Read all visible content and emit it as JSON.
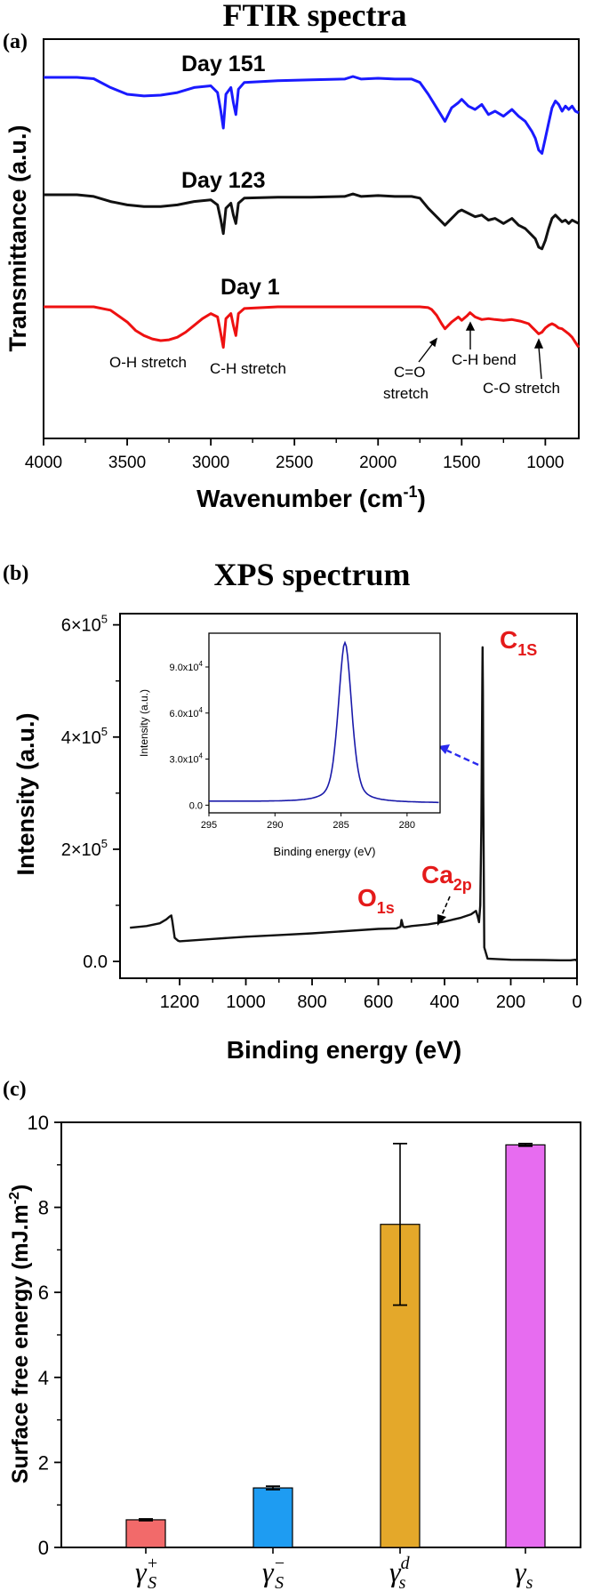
{
  "chart_data": [
    {
      "panel": "(a)",
      "type": "line",
      "title": "FTIR spectra",
      "xlabel": "Wavenumber (cm",
      "xlabel_sup": "-1",
      "xlabel_end": ")",
      "ylabel": "Transmittance (a.u.)",
      "xlim": [
        4000,
        800
      ],
      "xticks": [
        4000,
        3500,
        3000,
        2500,
        2000,
        1500,
        1000
      ],
      "yticks_shown": false,
      "series": [
        {
          "name": "Day 151",
          "color": "#1a1aff",
          "x": [
            4000,
            3900,
            3800,
            3700,
            3600,
            3500,
            3400,
            3300,
            3200,
            3100,
            3000,
            2960,
            2940,
            2925,
            2910,
            2880,
            2865,
            2850,
            2835,
            2800,
            2600,
            2400,
            2200,
            2150,
            2100,
            2000,
            1900,
            1800,
            1750,
            1700,
            1650,
            1600,
            1560,
            1520,
            1500,
            1460,
            1420,
            1380,
            1340,
            1300,
            1250,
            1200,
            1160,
            1120,
            1080,
            1060,
            1040,
            1020,
            1000,
            980,
            960,
            940,
            920,
            900,
            880,
            860,
            840,
            820,
            800
          ],
          "y": [
            0.0,
            0.0,
            0.0,
            -0.08,
            -0.6,
            -1.0,
            -1.1,
            -1.05,
            -0.9,
            -0.6,
            -0.5,
            -0.9,
            -2.0,
            -3.0,
            -1.0,
            -0.6,
            -1.5,
            -2.2,
            -0.7,
            -0.3,
            -0.2,
            -0.15,
            -0.1,
            0.05,
            -0.1,
            -0.05,
            -0.1,
            -0.1,
            -0.3,
            -1.0,
            -1.8,
            -2.6,
            -1.8,
            -1.5,
            -1.3,
            -1.7,
            -1.9,
            -1.6,
            -2.2,
            -2.0,
            -2.3,
            -1.9,
            -2.3,
            -2.6,
            -3.2,
            -3.6,
            -4.3,
            -4.5,
            -3.6,
            -2.7,
            -1.8,
            -1.4,
            -1.6,
            -2.0,
            -1.7,
            -1.9,
            -1.7,
            -2.0,
            -2.1
          ]
        },
        {
          "name": "Day 123",
          "color": "#111111",
          "x": [
            4000,
            3900,
            3800,
            3700,
            3600,
            3500,
            3400,
            3300,
            3200,
            3100,
            3000,
            2960,
            2940,
            2925,
            2910,
            2880,
            2865,
            2850,
            2835,
            2800,
            2600,
            2400,
            2200,
            2150,
            2100,
            2000,
            1900,
            1800,
            1750,
            1700,
            1650,
            1600,
            1560,
            1520,
            1500,
            1460,
            1420,
            1380,
            1340,
            1300,
            1250,
            1200,
            1160,
            1120,
            1080,
            1060,
            1040,
            1020,
            1000,
            980,
            960,
            940,
            920,
            900,
            880,
            860,
            840,
            820,
            800
          ],
          "y": [
            0.0,
            0.0,
            0.0,
            -0.1,
            -0.4,
            -0.6,
            -0.7,
            -0.7,
            -0.6,
            -0.4,
            -0.3,
            -0.6,
            -1.5,
            -2.3,
            -0.8,
            -0.5,
            -1.2,
            -1.7,
            -0.5,
            -0.2,
            -0.15,
            -0.15,
            -0.1,
            0.05,
            -0.1,
            -0.05,
            -0.1,
            -0.1,
            -0.2,
            -0.8,
            -1.3,
            -1.8,
            -1.4,
            -1.0,
            -0.9,
            -1.1,
            -1.3,
            -1.2,
            -1.5,
            -1.4,
            -1.7,
            -1.4,
            -1.8,
            -2.0,
            -2.4,
            -2.6,
            -3.1,
            -3.2,
            -2.7,
            -2.0,
            -1.4,
            -1.2,
            -1.4,
            -1.6,
            -1.5,
            -1.7,
            -1.5,
            -1.6,
            -1.7
          ]
        },
        {
          "name": "Day 1",
          "color": "#ee1111",
          "x": [
            4000,
            3900,
            3800,
            3700,
            3600,
            3500,
            3450,
            3400,
            3350,
            3300,
            3250,
            3200,
            3150,
            3100,
            3050,
            3000,
            2960,
            2940,
            2925,
            2910,
            2880,
            2865,
            2850,
            2835,
            2800,
            2600,
            2400,
            2200,
            2000,
            1800,
            1750,
            1700,
            1680,
            1650,
            1620,
            1600,
            1560,
            1520,
            1500,
            1470,
            1450,
            1420,
            1380,
            1340,
            1300,
            1250,
            1200,
            1150,
            1100,
            1080,
            1060,
            1040,
            1020,
            1000,
            980,
            960,
            940,
            920,
            900,
            880,
            860,
            840,
            820,
            800
          ],
          "y": [
            0.0,
            0.0,
            0.0,
            0.0,
            -0.2,
            -0.9,
            -1.4,
            -1.7,
            -1.9,
            -2.0,
            -1.95,
            -1.8,
            -1.5,
            -1.1,
            -0.7,
            -0.4,
            -0.6,
            -1.6,
            -2.4,
            -0.7,
            -0.4,
            -1.1,
            -1.7,
            -0.4,
            -0.1,
            0.0,
            0.0,
            0.0,
            0.0,
            0.0,
            0.0,
            -0.05,
            -0.15,
            -0.5,
            -1.0,
            -1.3,
            -0.9,
            -0.6,
            -0.8,
            -0.55,
            -0.35,
            -0.6,
            -0.75,
            -0.7,
            -0.75,
            -0.8,
            -0.75,
            -0.85,
            -1.0,
            -1.2,
            -1.4,
            -1.6,
            -1.5,
            -1.25,
            -1.1,
            -1.0,
            -1.1,
            -1.25,
            -1.3,
            -1.45,
            -1.6,
            -1.8,
            -2.1,
            -2.4
          ]
        }
      ],
      "annotations": [
        "O-H stretch",
        "C-H stretch",
        "C=O",
        "stretch",
        "C-H bend",
        "C-O stretch"
      ]
    },
    {
      "panel": "(b)",
      "type": "line",
      "title": "XPS spectrum",
      "xlabel": "Binding energy (eV)",
      "ylabel": "Intensity (a.u.)",
      "xlim": [
        1380,
        0
      ],
      "ylim": [
        -30000,
        620000
      ],
      "xticks": [
        1200,
        1000,
        800,
        600,
        400,
        200,
        0
      ],
      "yticks": [
        0,
        200000,
        400000,
        600000
      ],
      "ytick_labels": [
        "0.0",
        "2×10",
        "4×10",
        "6×10"
      ],
      "ytick_sup": "5",
      "series": [
        {
          "name": "survey",
          "color": "#111111",
          "x": [
            1350,
            1300,
            1260,
            1240,
            1230,
            1225,
            1222,
            1215,
            1205,
            1200,
            1100,
            1000,
            900,
            800,
            700,
            600,
            545,
            533,
            530,
            525,
            520,
            500,
            450,
            400,
            350,
            320,
            305,
            300,
            296,
            292,
            289,
            286,
            285,
            284,
            283,
            280,
            270,
            200,
            100,
            50,
            20,
            5,
            0
          ],
          "y": [
            60000,
            63000,
            68000,
            75000,
            80000,
            82000,
            72000,
            42000,
            37000,
            36000,
            40000,
            44000,
            47000,
            50000,
            54000,
            58000,
            59000,
            62000,
            74000,
            62000,
            61000,
            63000,
            66000,
            71000,
            78000,
            84000,
            90000,
            80000,
            70000,
            100000,
            240000,
            500000,
            560000,
            480000,
            300000,
            25000,
            5000,
            3000,
            2500,
            2000,
            2000,
            3000,
            1000
          ]
        }
      ],
      "peak_labels": [
        {
          "main": "C",
          "sub": "1S"
        },
        {
          "main": "O",
          "sub": "1s"
        },
        {
          "main": "Ca",
          "sub": "2p"
        }
      ],
      "inset": {
        "type": "line",
        "xlabel": "Binding energy (eV)",
        "ylabel": "Intensity (a.u.)",
        "xlim": [
          295,
          277.5
        ],
        "ylim": [
          -5000,
          112000
        ],
        "xticks": [
          295,
          290,
          285,
          280
        ],
        "yticks": [
          0,
          30000,
          60000,
          90000
        ],
        "ytick_labels": [
          "0.0",
          "3.0x10",
          "6.0x10",
          "9.0x10"
        ],
        "ytick_sup": "4",
        "peak_center": 284.7,
        "peak_height": 104000,
        "peak_hwhm": 0.6,
        "color": "#1a1aaa"
      }
    },
    {
      "panel": "(c)",
      "type": "bar",
      "ylabel": "Surface free energy (mJ.m",
      "ylabel_sup": "-2",
      "ylabel_end": ")",
      "ylim": [
        0,
        10
      ],
      "yticks": [
        0,
        2,
        4,
        6,
        8,
        10
      ],
      "categories": [
        {
          "base": "γ",
          "sup": "+",
          "sub": "S"
        },
        {
          "base": "γ",
          "sup": "−",
          "sub": "S"
        },
        {
          "base": "γ",
          "sup": "d",
          "sub": "s"
        },
        {
          "base": "γ",
          "sup": "",
          "sub": "s"
        }
      ],
      "values": [
        0.65,
        1.4,
        7.6,
        9.47
      ],
      "errors": [
        0.02,
        0.04,
        1.9,
        0.03
      ],
      "colors": [
        "#f26a6a",
        "#1e9cf2",
        "#e4a82a",
        "#e76cf0"
      ]
    }
  ]
}
